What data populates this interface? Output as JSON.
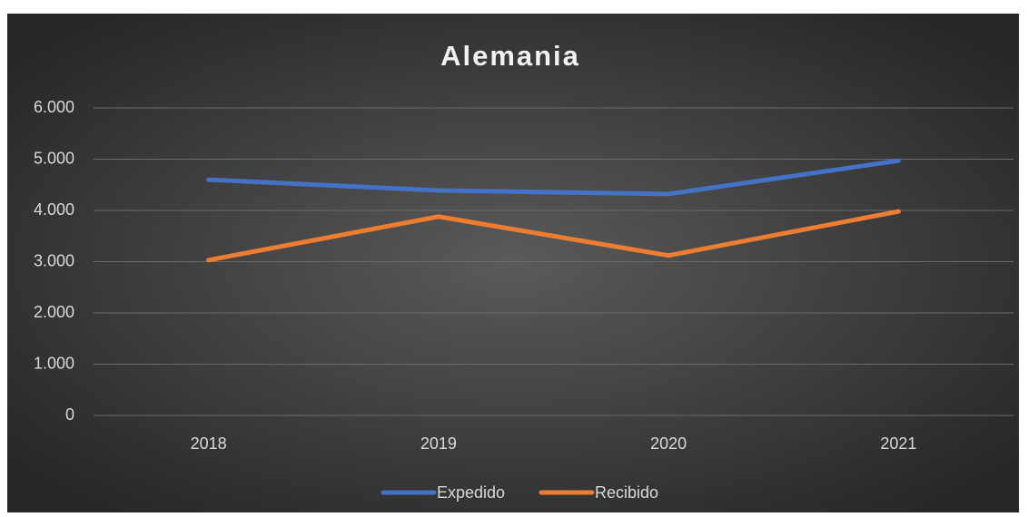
{
  "chart_data": {
    "type": "line",
    "title": "Alemania",
    "categories": [
      "2018",
      "2019",
      "2020",
      "2021"
    ],
    "series": [
      {
        "name": "Expedido",
        "color": "#4472c4",
        "values": [
          4600,
          4390,
          4320,
          4970
        ]
      },
      {
        "name": "Recibido",
        "color": "#ed7d31",
        "values": [
          3030,
          3880,
          3120,
          3980
        ]
      }
    ],
    "ylim": [
      0,
      6000
    ],
    "yticks": [
      0,
      {
        "value": 1000,
        "label": "1.000"
      },
      {
        "value": 2000,
        "label": "2.000"
      },
      {
        "value": 3000,
        "label": "3.000"
      },
      {
        "value": 4000,
        "label": "4.000"
      },
      {
        "value": 5000,
        "label": "5.000"
      },
      {
        "value": 6000,
        "label": "6.000"
      }
    ],
    "grid": true,
    "legend": "bottom"
  }
}
